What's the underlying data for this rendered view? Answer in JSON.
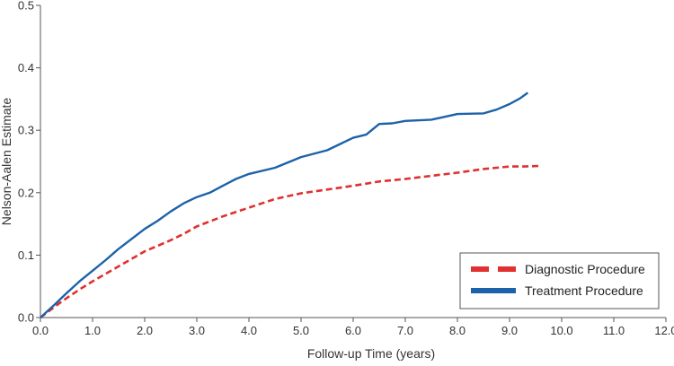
{
  "chart_data": {
    "type": "line",
    "title": "",
    "xlabel": "Follow-up Time (years)",
    "ylabel": "Nelson-Aalen Estimate",
    "xlim": [
      0,
      12
    ],
    "ylim": [
      0,
      0.5
    ],
    "xticks": [
      0,
      1,
      2,
      3,
      4,
      5,
      6,
      7,
      8,
      9,
      10,
      11,
      12
    ],
    "xtick_labels": [
      "0.0",
      "1.0",
      "2.0",
      "3.0",
      "4.0",
      "5.0",
      "6.0",
      "7.0",
      "8.0",
      "9.0",
      "10.0",
      "11.0",
      "12.0"
    ],
    "yticks": [
      0,
      0.1,
      0.2,
      0.3,
      0.4,
      0.5
    ],
    "ytick_labels": [
      "0.0",
      "0.1",
      "0.2",
      "0.3",
      "0.4",
      "0.5"
    ],
    "grid": false,
    "legend_position": "bottom-right",
    "series": [
      {
        "name": "Diagnostic Procedure",
        "color": "#e03030",
        "style": "dashed",
        "x": [
          0,
          0.25,
          0.5,
          0.75,
          1.0,
          1.25,
          1.5,
          1.75,
          2.0,
          2.25,
          2.5,
          2.75,
          3.0,
          3.5,
          4.0,
          4.5,
          5.0,
          5.5,
          6.0,
          6.5,
          7.0,
          7.5,
          8.0,
          8.5,
          9.0,
          9.3,
          9.6
        ],
        "y": [
          0,
          0.016,
          0.031,
          0.045,
          0.058,
          0.07,
          0.082,
          0.094,
          0.106,
          0.115,
          0.124,
          0.134,
          0.146,
          0.162,
          0.176,
          0.19,
          0.199,
          0.205,
          0.211,
          0.218,
          0.222,
          0.227,
          0.232,
          0.238,
          0.242,
          0.242,
          0.243
        ]
      },
      {
        "name": "Treatment Procedure",
        "color": "#1d62a8",
        "style": "solid",
        "x": [
          0,
          0.25,
          0.5,
          0.75,
          1.0,
          1.25,
          1.5,
          1.75,
          2.0,
          2.25,
          2.5,
          2.75,
          3.0,
          3.25,
          3.5,
          3.75,
          4.0,
          4.5,
          5.0,
          5.5,
          6.0,
          6.25,
          6.5,
          6.75,
          7.0,
          7.5,
          8.0,
          8.5,
          8.75,
          9.0,
          9.2,
          9.35
        ],
        "y": [
          0,
          0.019,
          0.039,
          0.058,
          0.075,
          0.092,
          0.11,
          0.126,
          0.142,
          0.155,
          0.17,
          0.183,
          0.193,
          0.2,
          0.211,
          0.222,
          0.23,
          0.24,
          0.257,
          0.268,
          0.288,
          0.293,
          0.31,
          0.311,
          0.315,
          0.317,
          0.326,
          0.327,
          0.333,
          0.342,
          0.351,
          0.36
        ]
      }
    ]
  }
}
